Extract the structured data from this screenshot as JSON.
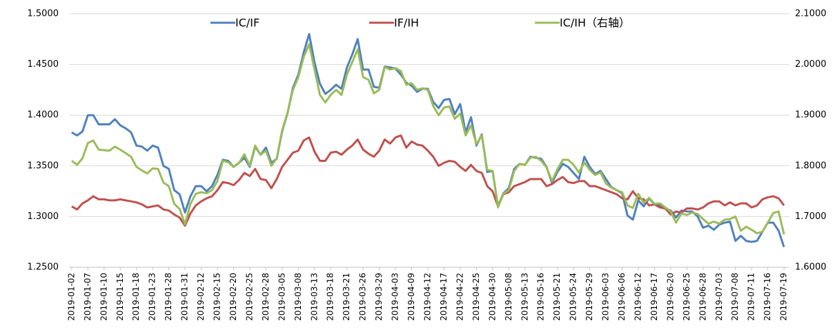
{
  "chart_data": {
    "type": "line",
    "categories": [
      "2019-01-02",
      null,
      null,
      "2019-01-07",
      null,
      null,
      "2019-01-10",
      null,
      null,
      "2019-01-15",
      null,
      null,
      "2019-01-18",
      null,
      null,
      "2019-01-23",
      null,
      null,
      "2019-01-28",
      null,
      null,
      "2019-01-31",
      null,
      null,
      "2019-02-12",
      null,
      null,
      "2019-02-15",
      null,
      null,
      "2019-02-20",
      null,
      null,
      "2019-02-25",
      null,
      null,
      "2019-02-28",
      null,
      null,
      "2019-03-05",
      null,
      null,
      "2019-03-08",
      null,
      null,
      "2019-03-13",
      null,
      null,
      "2019-03-18",
      null,
      null,
      "2019-03-21",
      null,
      null,
      "2019-03-26",
      null,
      null,
      "2019-03-29",
      null,
      null,
      "2019-04-03",
      null,
      null,
      "2019-04-09",
      null,
      null,
      "2019-04-12",
      null,
      null,
      "2019-04-17",
      null,
      null,
      "2019-04-22",
      null,
      null,
      "2019-04-25",
      null,
      null,
      "2019-04-30",
      null,
      null,
      "2019-05-08",
      null,
      null,
      "2019-05-13",
      null,
      null,
      "2019-05-16",
      null,
      null,
      "2019-05-21",
      null,
      null,
      "2019-05-24",
      null,
      null,
      "2019-05-29",
      null,
      null,
      "2019-06-03",
      null,
      null,
      "2019-06-06",
      null,
      null,
      "2019-06-12",
      null,
      null,
      "2019-06-17",
      null,
      null,
      "2019-06-20",
      null,
      null,
      "2019-06-25",
      null,
      null,
      "2019-06-28",
      null,
      null,
      "2019-07-03",
      null,
      null,
      "2019-07-08",
      null,
      null,
      "2019-07-11",
      null,
      null,
      "2019-07-16",
      null,
      null,
      "2019-07-19"
    ],
    "series": [
      {
        "name": "IC/IF",
        "color": "#4f81bd",
        "axis": "y",
        "values": [
          1.383,
          1.38,
          1.384,
          1.4,
          1.4,
          1.391,
          1.391,
          1.391,
          1.396,
          1.39,
          1.387,
          1.383,
          1.37,
          1.369,
          1.365,
          1.37,
          1.368,
          1.35,
          1.347,
          1.326,
          1.322,
          1.304,
          1.32,
          1.33,
          1.33,
          1.325,
          1.33,
          1.341,
          1.356,
          1.355,
          1.349,
          1.353,
          1.358,
          1.349,
          1.369,
          1.361,
          1.368,
          1.353,
          1.357,
          1.384,
          1.402,
          1.427,
          1.44,
          1.462,
          1.48,
          1.452,
          1.431,
          1.421,
          1.425,
          1.43,
          1.426,
          1.447,
          1.46,
          1.475,
          1.445,
          1.445,
          1.428,
          1.427,
          1.448,
          1.447,
          1.446,
          1.44,
          1.432,
          1.429,
          1.423,
          1.426,
          1.426,
          1.413,
          1.407,
          1.415,
          1.416,
          1.401,
          1.411,
          1.383,
          1.398,
          1.37,
          1.381,
          1.344,
          1.345,
          1.31,
          1.323,
          1.328,
          1.347,
          1.352,
          1.351,
          1.359,
          1.358,
          1.357,
          1.349,
          1.333,
          1.344,
          1.352,
          1.349,
          1.343,
          1.337,
          1.359,
          1.349,
          1.342,
          1.345,
          1.337,
          1.329,
          1.326,
          1.323,
          1.301,
          1.297,
          1.316,
          1.31,
          1.318,
          1.312,
          1.311,
          1.308,
          1.306,
          1.299,
          1.306,
          1.305,
          1.305,
          1.3,
          1.289,
          1.291,
          1.287,
          1.292,
          1.294,
          1.295,
          1.276,
          1.281,
          1.276,
          1.275,
          1.276,
          1.285,
          1.294,
          1.294,
          1.286,
          1.27
        ]
      },
      {
        "name": "IF/IH",
        "color": "#c0504d",
        "axis": "y",
        "values": [
          1.31,
          1.307,
          1.313,
          1.316,
          1.32,
          1.317,
          1.317,
          1.316,
          1.316,
          1.317,
          1.316,
          1.315,
          1.314,
          1.312,
          1.309,
          1.31,
          1.311,
          1.307,
          1.306,
          1.302,
          1.299,
          1.291,
          1.303,
          1.311,
          1.315,
          1.318,
          1.32,
          1.326,
          1.334,
          1.333,
          1.331,
          1.336,
          1.343,
          1.34,
          1.347,
          1.337,
          1.336,
          1.328,
          1.337,
          1.349,
          1.356,
          1.363,
          1.365,
          1.375,
          1.378,
          1.364,
          1.355,
          1.355,
          1.363,
          1.364,
          1.361,
          1.366,
          1.37,
          1.376,
          1.366,
          1.362,
          1.359,
          1.365,
          1.376,
          1.372,
          1.378,
          1.38,
          1.368,
          1.374,
          1.371,
          1.37,
          1.365,
          1.359,
          1.35,
          1.353,
          1.355,
          1.354,
          1.349,
          1.345,
          1.351,
          1.345,
          1.343,
          1.33,
          1.325,
          1.31,
          1.322,
          1.324,
          1.33,
          1.332,
          1.334,
          1.337,
          1.337,
          1.337,
          1.33,
          1.332,
          1.336,
          1.339,
          1.334,
          1.333,
          1.335,
          1.335,
          1.33,
          1.33,
          1.328,
          1.326,
          1.324,
          1.322,
          1.318,
          1.317,
          1.325,
          1.318,
          1.317,
          1.311,
          1.312,
          1.309,
          1.308,
          1.302,
          1.305,
          1.304,
          1.308,
          1.308,
          1.307,
          1.309,
          1.313,
          1.315,
          1.315,
          1.311,
          1.314,
          1.311,
          1.313,
          1.313,
          1.309,
          1.311,
          1.317,
          1.319,
          1.32,
          1.318,
          1.311
        ]
      },
      {
        "name": "IC/IH（右轴）",
        "color": "#9bbb59",
        "axis": "y2",
        "values": [
          1.81,
          1.802,
          1.815,
          1.845,
          1.85,
          1.832,
          1.831,
          1.83,
          1.838,
          1.832,
          1.825,
          1.818,
          1.798,
          1.791,
          1.785,
          1.795,
          1.794,
          1.767,
          1.76,
          1.725,
          1.715,
          1.685,
          1.725,
          1.745,
          1.748,
          1.746,
          1.752,
          1.77,
          1.81,
          1.807,
          1.798,
          1.806,
          1.823,
          1.8,
          1.84,
          1.822,
          1.83,
          1.8,
          1.815,
          1.87,
          1.905,
          1.95,
          1.975,
          2.015,
          2.04,
          1.99,
          1.94,
          1.925,
          1.94,
          1.95,
          1.94,
          1.98,
          2.005,
          2.03,
          1.975,
          1.97,
          1.943,
          1.95,
          1.995,
          1.99,
          1.993,
          1.987,
          1.96,
          1.963,
          1.95,
          1.953,
          1.95,
          1.918,
          1.9,
          1.915,
          1.917,
          1.893,
          1.903,
          1.86,
          1.88,
          1.843,
          1.86,
          1.792,
          1.79,
          1.718,
          1.745,
          1.752,
          1.79,
          1.804,
          1.802,
          1.816,
          1.818,
          1.81,
          1.797,
          1.77,
          1.793,
          1.812,
          1.812,
          1.802,
          1.787,
          1.807,
          1.792,
          1.782,
          1.787,
          1.765,
          1.757,
          1.752,
          1.748,
          1.722,
          1.717,
          1.745,
          1.727,
          1.737,
          1.725,
          1.726,
          1.718,
          1.71,
          1.688,
          1.706,
          1.703,
          1.708,
          1.705,
          1.695,
          1.686,
          1.69,
          1.686,
          1.694,
          1.695,
          1.7,
          1.672,
          1.68,
          1.674,
          1.667,
          1.67,
          1.688,
          1.707,
          1.71,
          1.665
        ]
      }
    ],
    "ylim": [
      1.25,
      1.5
    ],
    "yticks": [
      {
        "value": 1.25,
        "label": "1.2500"
      },
      {
        "value": 1.3,
        "label": "1.3000"
      },
      {
        "value": 1.35,
        "label": "1.3500"
      },
      {
        "value": 1.4,
        "label": "1.4000"
      },
      {
        "value": 1.45,
        "label": "1.4500"
      },
      {
        "value": 1.5,
        "label": "1.5000"
      }
    ],
    "y2lim": [
      1.6,
      2.1
    ],
    "y2ticks": [
      {
        "value": 1.6,
        "label": "1.6000"
      },
      {
        "value": 1.7,
        "label": "1.7000"
      },
      {
        "value": 1.8,
        "label": "1.8000"
      },
      {
        "value": 1.9,
        "label": "1.9000"
      },
      {
        "value": 2.0,
        "label": "2.0000"
      },
      {
        "value": 2.1,
        "label": "2.1000"
      }
    ],
    "grid": true
  }
}
